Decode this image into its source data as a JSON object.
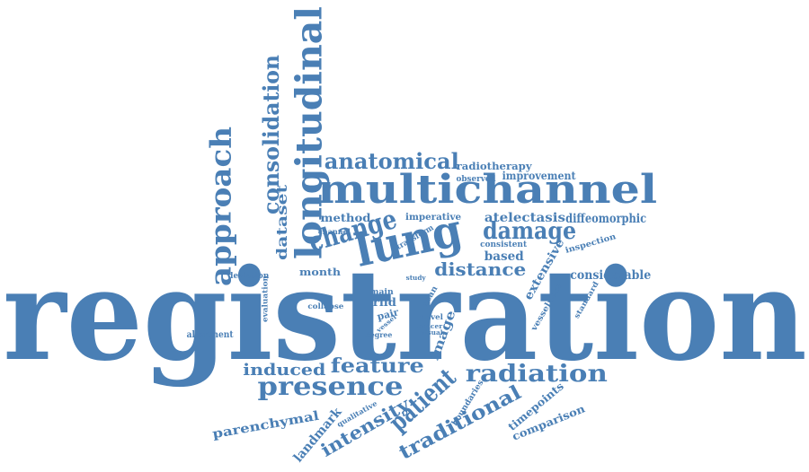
{
  "colors": {
    "text": "#4a7fb5",
    "background": "#ffffff"
  },
  "words": [
    {
      "id": "registration",
      "text": "registration"
    },
    {
      "id": "multichannel",
      "text": "multichannel"
    },
    {
      "id": "longitudinal",
      "text": "longitudinal"
    },
    {
      "id": "lung",
      "text": "lung"
    },
    {
      "id": "approach",
      "text": "approach"
    },
    {
      "id": "consolidation",
      "text": "consolidation"
    },
    {
      "id": "anatomical",
      "text": "anatomical"
    },
    {
      "id": "change",
      "text": "change"
    },
    {
      "id": "damage",
      "text": "damage"
    },
    {
      "id": "distance",
      "text": "distance"
    },
    {
      "id": "presence",
      "text": "presence"
    },
    {
      "id": "radiation",
      "text": "radiation"
    },
    {
      "id": "feature",
      "text": "feature"
    },
    {
      "id": "induced",
      "text": "induced"
    },
    {
      "id": "patient",
      "text": "patient"
    },
    {
      "id": "traditional",
      "text": "traditional"
    },
    {
      "id": "intensity",
      "text": "intensity"
    },
    {
      "id": "landmark",
      "text": "landmark"
    },
    {
      "id": "parenchymal",
      "text": "parenchymal"
    },
    {
      "id": "dataset",
      "text": "dataset"
    },
    {
      "id": "method",
      "text": "method"
    },
    {
      "id": "radiotherapy",
      "text": "radiotherapy"
    },
    {
      "id": "improvement",
      "text": "improvement"
    },
    {
      "id": "observed",
      "text": "observed"
    },
    {
      "id": "atelectasis",
      "text": "atelectasis"
    },
    {
      "id": "diffeomorphic",
      "text": "diffeomorphic"
    },
    {
      "id": "imperative",
      "text": "imperative"
    },
    {
      "id": "channel",
      "text": "channel"
    },
    {
      "id": "transform",
      "text": "transform"
    },
    {
      "id": "consistent",
      "text": "consistent"
    },
    {
      "id": "inspection",
      "text": "inspection"
    },
    {
      "id": "based",
      "text": "based"
    },
    {
      "id": "extensive",
      "text": "extensive"
    },
    {
      "id": "considerable",
      "text": "considerable"
    },
    {
      "id": "month",
      "text": "month"
    },
    {
      "id": "deviation",
      "text": "deviation"
    },
    {
      "id": "evaluation",
      "text": "evaluation"
    },
    {
      "id": "collapse",
      "text": "collapse"
    },
    {
      "id": "main",
      "text": "main"
    },
    {
      "id": "rild",
      "text": "rild"
    },
    {
      "id": "pair",
      "text": "pair"
    },
    {
      "id": "scan",
      "text": "scan"
    },
    {
      "id": "novel",
      "text": "novel"
    },
    {
      "id": "cancer",
      "text": "cancer"
    },
    {
      "id": "image",
      "text": "image"
    },
    {
      "id": "vesselness",
      "text": "vesselness"
    },
    {
      "id": "standard",
      "text": "standard"
    },
    {
      "id": "alignment",
      "text": "alignment"
    },
    {
      "id": "degree",
      "text": "degree"
    },
    {
      "id": "visual",
      "text": "visual"
    },
    {
      "id": "vessel",
      "text": "vessel"
    },
    {
      "id": "study",
      "text": "study"
    },
    {
      "id": "boundaries",
      "text": "boundaries"
    },
    {
      "id": "qualitative",
      "text": "qualitative"
    },
    {
      "id": "timepoints",
      "text": "timepoints"
    },
    {
      "id": "comparison",
      "text": "comparison"
    }
  ]
}
